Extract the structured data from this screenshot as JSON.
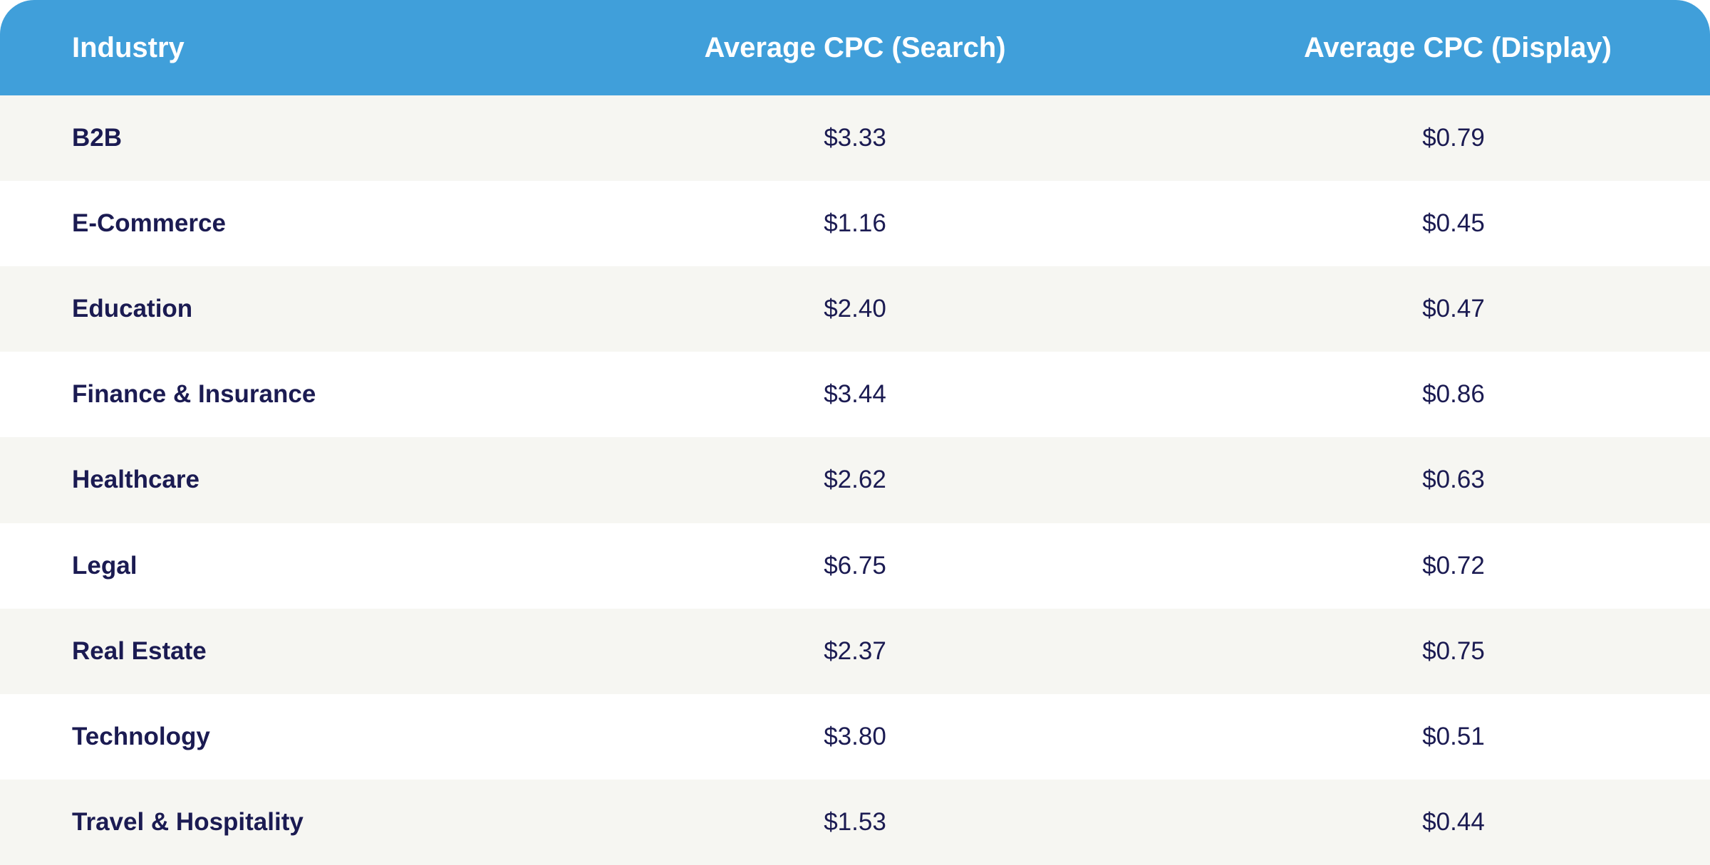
{
  "chart_data": {
    "type": "table",
    "columns": [
      "Industry",
      "Average CPC (Search)",
      "Average CPC (Display)"
    ],
    "rows": [
      {
        "industry": "B2B",
        "search": "$3.33",
        "display": "$0.79"
      },
      {
        "industry": "E-Commerce",
        "search": "$1.16",
        "display": "$0.45"
      },
      {
        "industry": "Education",
        "search": "$2.40",
        "display": "$0.47"
      },
      {
        "industry": "Finance & Insurance",
        "search": "$3.44",
        "display": "$0.86"
      },
      {
        "industry": "Healthcare",
        "search": "$2.62",
        "display": "$0.63"
      },
      {
        "industry": "Legal",
        "search": "$6.75",
        "display": "$0.72"
      },
      {
        "industry": "Real Estate",
        "search": "$2.37",
        "display": "$0.75"
      },
      {
        "industry": "Technology",
        "search": "$3.80",
        "display": "$0.51"
      },
      {
        "industry": "Travel & Hospitality",
        "search": "$1.53",
        "display": "$0.44"
      }
    ]
  },
  "colors": {
    "header_background": "#409fda",
    "header_text": "#ffffff",
    "row_text": "#1b1b52",
    "row_stripe": "#f6f6f2",
    "row_plain": "#ffffff"
  }
}
